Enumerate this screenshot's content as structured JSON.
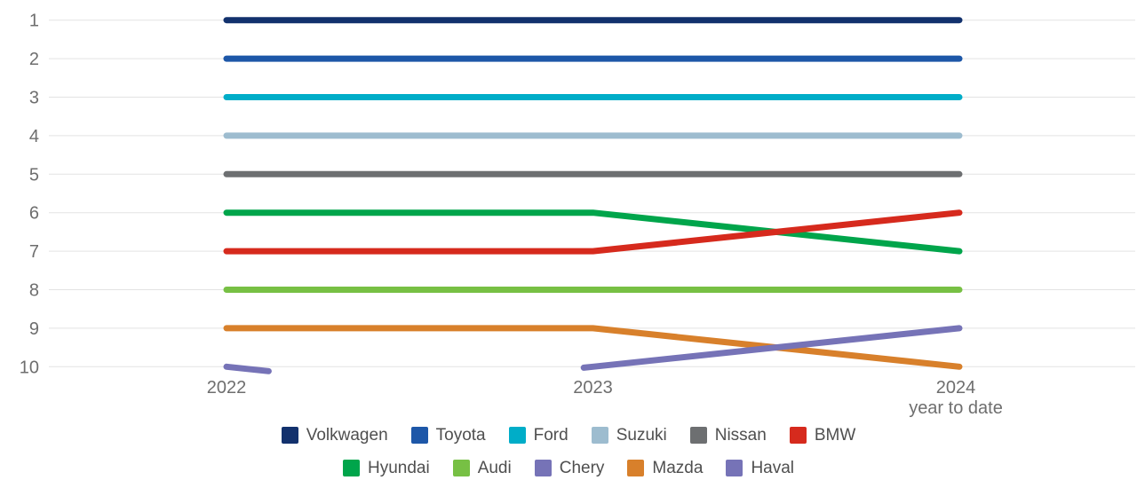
{
  "chart_data": {
    "type": "line",
    "variant": "bump_ranking",
    "title": "",
    "x_categories": [
      "2022",
      "2023",
      "2024"
    ],
    "x_sub_label": "year to date",
    "y_ticks": [
      "1",
      "2",
      "3",
      "4",
      "5",
      "6",
      "7",
      "8",
      "9",
      "10"
    ],
    "ylim": [
      1,
      10
    ],
    "y_inverted": true,
    "grid": true,
    "legend_position": "bottom",
    "axis_color": "#6e6e6e",
    "gridline_color": "#e3e3e3",
    "series": [
      {
        "name": "Volkwagen",
        "color": "#12316d",
        "ranks": [
          1,
          1,
          1
        ]
      },
      {
        "name": "Toyota",
        "color": "#1d57a8",
        "ranks": [
          2,
          2,
          2
        ]
      },
      {
        "name": "Ford",
        "color": "#00adc8",
        "ranks": [
          3,
          3,
          3
        ]
      },
      {
        "name": "Suzuki",
        "color": "#9dbccf",
        "ranks": [
          4,
          4,
          4
        ]
      },
      {
        "name": "Nissan",
        "color": "#6d6f71",
        "ranks": [
          5,
          5,
          5
        ]
      },
      {
        "name": "BMW",
        "color": "#d62a1d",
        "ranks": [
          7,
          7,
          6
        ]
      },
      {
        "name": "Hyundai",
        "color": "#00a54b",
        "ranks": [
          6,
          6,
          7
        ]
      },
      {
        "name": "Audi",
        "color": "#77c044",
        "ranks": [
          8,
          8,
          8
        ]
      },
      {
        "name": "Chery",
        "color": "#7673b7",
        "ranks": [
          null,
          10,
          9
        ]
      },
      {
        "name": "Mazda",
        "color": "#d8802b",
        "ranks": [
          9,
          9,
          10
        ]
      },
      {
        "name": "Haval",
        "color": "#7673b7",
        "ranks": [
          10,
          null,
          null
        ]
      }
    ],
    "legend_rows": [
      [
        "Volkwagen",
        "Toyota",
        "Ford",
        "Suzuki",
        "Nissan",
        "BMW"
      ],
      [
        "Hyundai",
        "Audi",
        "Chery",
        "Mazda",
        "Haval"
      ]
    ]
  }
}
